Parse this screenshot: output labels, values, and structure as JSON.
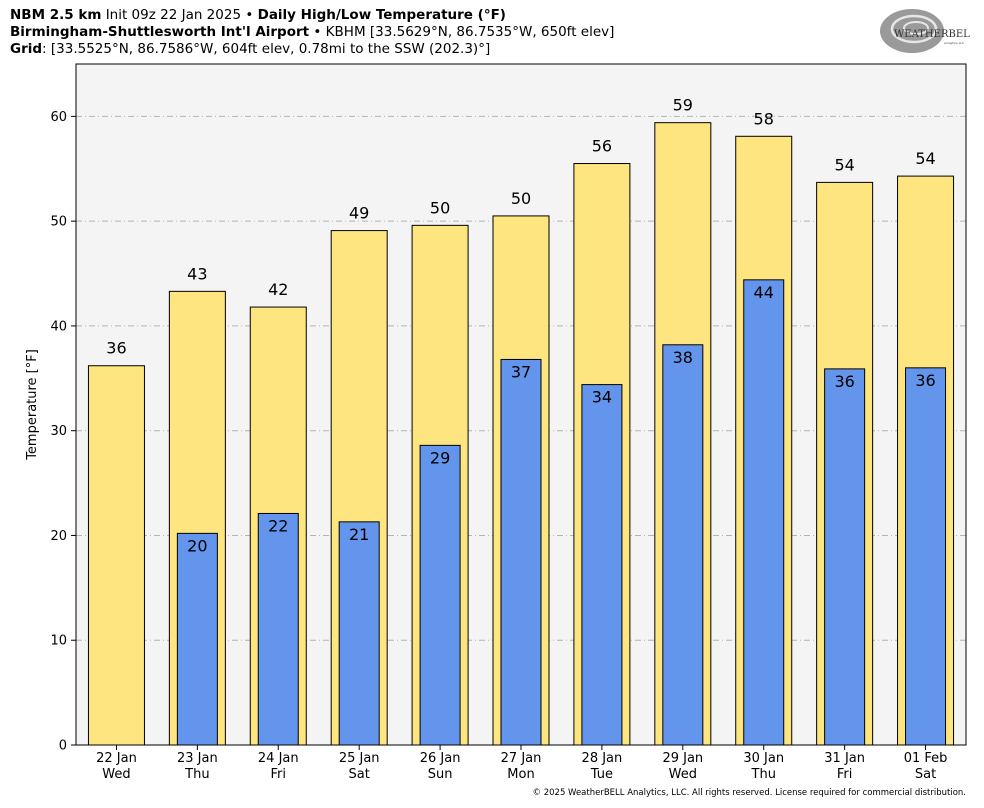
{
  "header": {
    "line1": {
      "model": "NBM 2.5 km",
      "init": "Init 09z 22 Jan 2025",
      "sep": "•",
      "product": "Daily High/Low Temperature (°F)"
    },
    "line2": {
      "station": "Birmingham-Shuttlesworth Int'l Airport",
      "sep": "•",
      "details": "KBHM [33.5629°N, 86.7535°W, 650ft elev]"
    },
    "line3": {
      "label": "Grid",
      "details": ": [33.5525°N, 86.7586°W, 604ft elev, 0.78mi to the SSW (202.3)°]"
    }
  },
  "logo": {
    "text_big": "WEATHERBELL",
    "text_small": "Analytics LLC"
  },
  "copyright": "© 2025 WeatherBELL Analytics, LLC. All rights reserved. License required for commercial distribution.",
  "colors": {
    "high_fill": "#FFE57F",
    "low_fill": "#6495ED",
    "plot_bg": "#F4F4F4",
    "grid": "#B4B4B4"
  },
  "chart_data": {
    "type": "bar",
    "ylabel": "Temperature [°F]",
    "ylim": [
      0,
      65
    ],
    "yticks": [
      0,
      10,
      20,
      30,
      40,
      50,
      60
    ],
    "grid": "horizontal dashed",
    "categories": [
      {
        "date": "22 Jan",
        "day": "Wed"
      },
      {
        "date": "23 Jan",
        "day": "Thu"
      },
      {
        "date": "24 Jan",
        "day": "Fri"
      },
      {
        "date": "25 Jan",
        "day": "Sat"
      },
      {
        "date": "26 Jan",
        "day": "Sun"
      },
      {
        "date": "27 Jan",
        "day": "Mon"
      },
      {
        "date": "28 Jan",
        "day": "Tue"
      },
      {
        "date": "29 Jan",
        "day": "Wed"
      },
      {
        "date": "30 Jan",
        "day": "Thu"
      },
      {
        "date": "31 Jan",
        "day": "Fri"
      },
      {
        "date": "01 Feb",
        "day": "Sat"
      }
    ],
    "series": [
      {
        "values": [
          36.2,
          43.3,
          41.8,
          49.1,
          49.6,
          50.5,
          55.5,
          59.4,
          58.1,
          53.7,
          54.3
        ],
        "labels": [
          "36",
          "43",
          "42",
          "49",
          "50",
          "50",
          "56",
          "59",
          "58",
          "54",
          "54"
        ]
      },
      {
        "values": [
          null,
          20.2,
          22.1,
          21.3,
          28.6,
          36.8,
          34.4,
          38.2,
          44.4,
          35.9,
          36.0
        ],
        "labels": [
          "",
          "20",
          "22",
          "21",
          "29",
          "37",
          "34",
          "38",
          "44",
          "36",
          "36"
        ]
      }
    ]
  }
}
